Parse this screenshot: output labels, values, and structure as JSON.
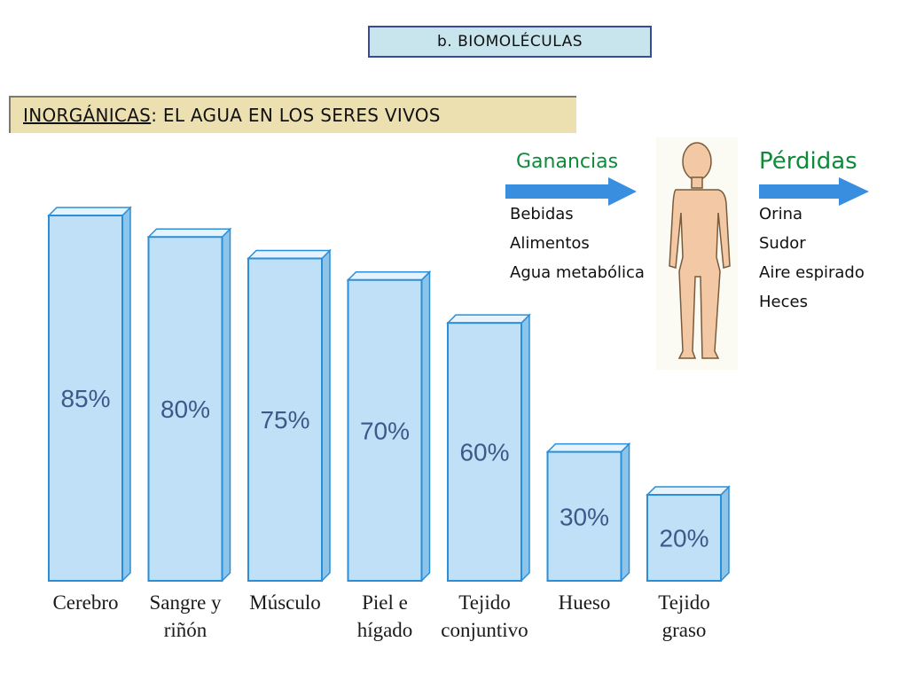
{
  "section_title": "b. BIOMOLÉCULAS",
  "heading": {
    "prefix": "INORGÁNICAS",
    "rest": ": EL AGUA EN LOS SERES VIVOS"
  },
  "gains": {
    "label": "Ganancias",
    "items": [
      "Bebidas",
      "Alimentos",
      "Agua metabólica"
    ]
  },
  "losses": {
    "label": "Pérdidas",
    "items": [
      "Orina",
      "Sudor",
      "Aire espirado",
      "Heces"
    ]
  },
  "colors": {
    "bar_front": "#bfe0f6",
    "bar_side": "#8cc4ea",
    "bar_edge": "#2a8fd8",
    "arrow": "#3a8ee0",
    "body": "#f2c9a4",
    "label_green": "#0f8a3a"
  },
  "chart_data": {
    "type": "bar",
    "categories": [
      [
        "Cerebro"
      ],
      [
        "Sangre y",
        "riñón"
      ],
      [
        "Músculo"
      ],
      [
        "Piel e",
        "hígado"
      ],
      [
        "Tejido",
        "conjuntivo"
      ],
      [
        "Hueso"
      ],
      [
        "Tejido",
        "graso"
      ]
    ],
    "values": [
      85,
      80,
      75,
      70,
      60,
      30,
      20
    ],
    "value_labels": [
      "85%",
      "80%",
      "75%",
      "70%",
      "60%",
      "30%",
      "20%"
    ],
    "ylim": [
      0,
      100
    ],
    "grid": false,
    "legend": "none"
  }
}
